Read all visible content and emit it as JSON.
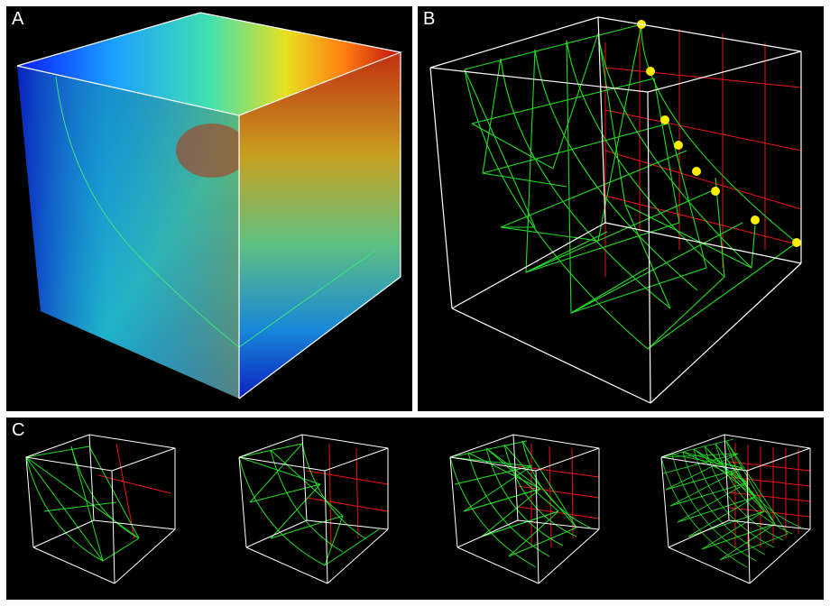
{
  "panels": {
    "a": {
      "label": "A",
      "description_name": "cube-color-field"
    },
    "b": {
      "label": "B",
      "description_name": "fracture-mesh-wireframe"
    },
    "c": {
      "label": "C",
      "description_name": "mesh-refinement-sequence"
    }
  },
  "colors": {
    "frame": "#ffffff",
    "background": "#000000",
    "mesh": "#22dd22",
    "grid": "#ee1111",
    "node": "#ffee00",
    "scalar_low": "#0a14c8",
    "scalar_high": "#b41010"
  },
  "panel_b": {
    "highlighted_node_count": 8
  },
  "panel_c": {
    "refinement_levels": [
      1,
      2,
      3,
      4
    ]
  }
}
